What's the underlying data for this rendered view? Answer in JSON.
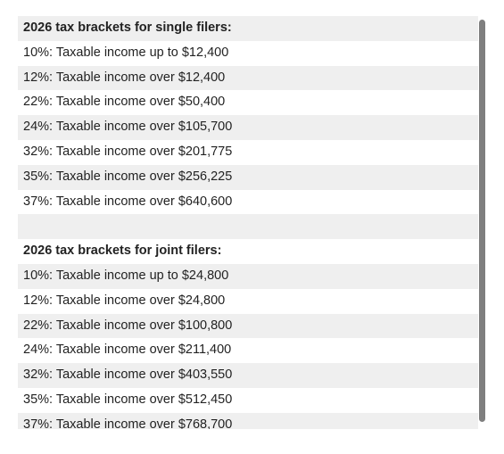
{
  "single": {
    "heading": "2026 tax brackets for single filers:",
    "rows": [
      "10%: Taxable income up to $12,400",
      "12%: Taxable income over $12,400",
      "22%: Taxable income over $50,400",
      "24%: Taxable income over $105,700",
      "32%: Taxable income over $201,775",
      "35%: Taxable income over $256,225",
      "37%: Taxable income over $640,600"
    ]
  },
  "joint": {
    "heading": "2026 tax brackets for joint filers:",
    "rows": [
      "10%: Taxable income up to $24,800",
      "12%: Taxable income over $24,800",
      "22%: Taxable income over $100,800",
      "24%: Taxable income over $211,400",
      "32%: Taxable income over $403,550",
      "35%: Taxable income over $512,450",
      "37%: Taxable income over $768,700"
    ]
  }
}
